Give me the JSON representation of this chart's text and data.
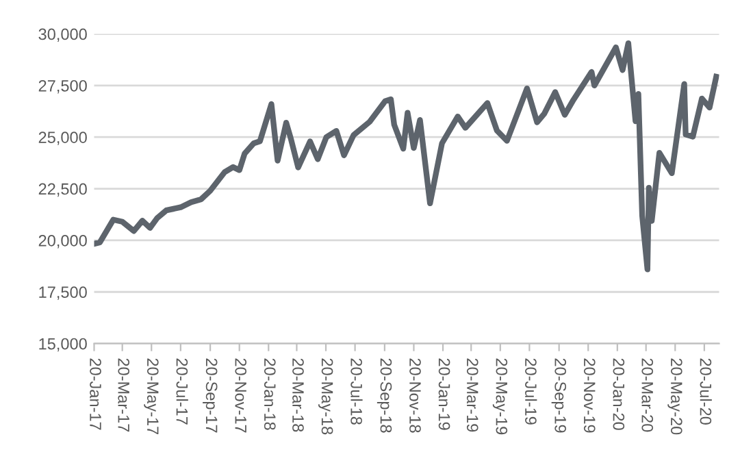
{
  "chart_data": {
    "type": "line",
    "grid": "y",
    "legend": false,
    "marker": "none",
    "line_style": "solid",
    "x": [
      "2017-01-20",
      "2017-02-01",
      "2017-03-01",
      "2017-03-20",
      "2017-04-13",
      "2017-05-01",
      "2017-05-17",
      "2017-06-01",
      "2017-06-20",
      "2017-07-20",
      "2017-08-11",
      "2017-09-01",
      "2017-09-20",
      "2017-10-20",
      "2017-11-07",
      "2017-11-20",
      "2017-12-01",
      "2017-12-20",
      "2018-01-02",
      "2018-01-26",
      "2018-02-08",
      "2018-02-26",
      "2018-03-08",
      "2018-03-23",
      "2018-04-17",
      "2018-05-03",
      "2018-05-21",
      "2018-06-11",
      "2018-06-27",
      "2018-07-17",
      "2018-08-20",
      "2018-09-21",
      "2018-10-03",
      "2018-10-10",
      "2018-10-29",
      "2018-11-07",
      "2018-11-20",
      "2018-12-03",
      "2018-12-24",
      "2019-01-18",
      "2019-02-20",
      "2019-03-08",
      "2019-04-23",
      "2019-05-13",
      "2019-06-03",
      "2019-07-15",
      "2019-08-05",
      "2019-08-20",
      "2019-09-12",
      "2019-10-02",
      "2019-10-20",
      "2019-11-27",
      "2019-12-03",
      "2020-01-17",
      "2020-01-31",
      "2020-02-12",
      "2020-02-27",
      "2020-03-04",
      "2020-03-12",
      "2020-03-23",
      "2020-03-26",
      "2020-04-01",
      "2020-04-17",
      "2020-05-13",
      "2020-06-08",
      "2020-06-11",
      "2020-06-26",
      "2020-07-15",
      "2020-07-31",
      "2020-08-14"
    ],
    "series": [
      {
        "color": "#5d646c",
        "values": [
          19830,
          19900,
          21000,
          20900,
          20450,
          20950,
          20600,
          21080,
          21450,
          21600,
          21850,
          21990,
          22400,
          23300,
          23550,
          23400,
          24200,
          24700,
          24800,
          26600,
          23860,
          25700,
          24900,
          23530,
          24790,
          23930,
          25000,
          25300,
          24120,
          25100,
          25750,
          26740,
          26830,
          25600,
          24440,
          26180,
          24470,
          25830,
          21790,
          24700,
          26000,
          25450,
          26650,
          25320,
          24820,
          27360,
          25720,
          26130,
          27180,
          26080,
          26800,
          28160,
          27500,
          29350,
          28250,
          29550,
          25770,
          27090,
          21200,
          18590,
          22550,
          20940,
          24240,
          23250,
          27570,
          25130,
          25020,
          26870,
          26430,
          27930
        ]
      }
    ],
    "xlim": [
      "2017-01-20",
      "2020-08-20"
    ],
    "xticks": [
      {
        "value": "2017-01-20",
        "label": "20-Jan-17"
      },
      {
        "value": "2017-03-20",
        "label": "20-Mar-17"
      },
      {
        "value": "2017-05-20",
        "label": "20-May-17"
      },
      {
        "value": "2017-07-20",
        "label": "20-Jul-17"
      },
      {
        "value": "2017-09-20",
        "label": "20-Sep-17"
      },
      {
        "value": "2017-11-20",
        "label": "20-Nov-17"
      },
      {
        "value": "2018-01-20",
        "label": "20-Jan-18"
      },
      {
        "value": "2018-03-20",
        "label": "20-Mar-18"
      },
      {
        "value": "2018-05-20",
        "label": "20-May-18"
      },
      {
        "value": "2018-07-20",
        "label": "20-Jul-18"
      },
      {
        "value": "2018-09-20",
        "label": "20-Sep-18"
      },
      {
        "value": "2018-11-20",
        "label": "20-Nov-18"
      },
      {
        "value": "2019-01-20",
        "label": "20-Jan-19"
      },
      {
        "value": "2019-03-20",
        "label": "20-Mar-19"
      },
      {
        "value": "2019-05-20",
        "label": "20-May-19"
      },
      {
        "value": "2019-07-20",
        "label": "20-Jul-19"
      },
      {
        "value": "2019-09-20",
        "label": "20-Sep-19"
      },
      {
        "value": "2019-11-20",
        "label": "20-Nov-19"
      },
      {
        "value": "2020-01-20",
        "label": "20-Jan-20"
      },
      {
        "value": "2020-03-20",
        "label": "20-Mar-20"
      },
      {
        "value": "2020-05-20",
        "label": "20-May-20"
      },
      {
        "value": "2020-07-20",
        "label": "20-Jul-20"
      }
    ],
    "ylim": [
      15000,
      30000
    ],
    "yticks": [
      {
        "value": 15000,
        "label": "15,000"
      },
      {
        "value": 17500,
        "label": "17,500"
      },
      {
        "value": 20000,
        "label": "20,000"
      },
      {
        "value": 22500,
        "label": "22,500"
      },
      {
        "value": 25000,
        "label": "25,000"
      },
      {
        "value": 27500,
        "label": "27,500"
      },
      {
        "value": 30000,
        "label": "30,000"
      }
    ]
  }
}
